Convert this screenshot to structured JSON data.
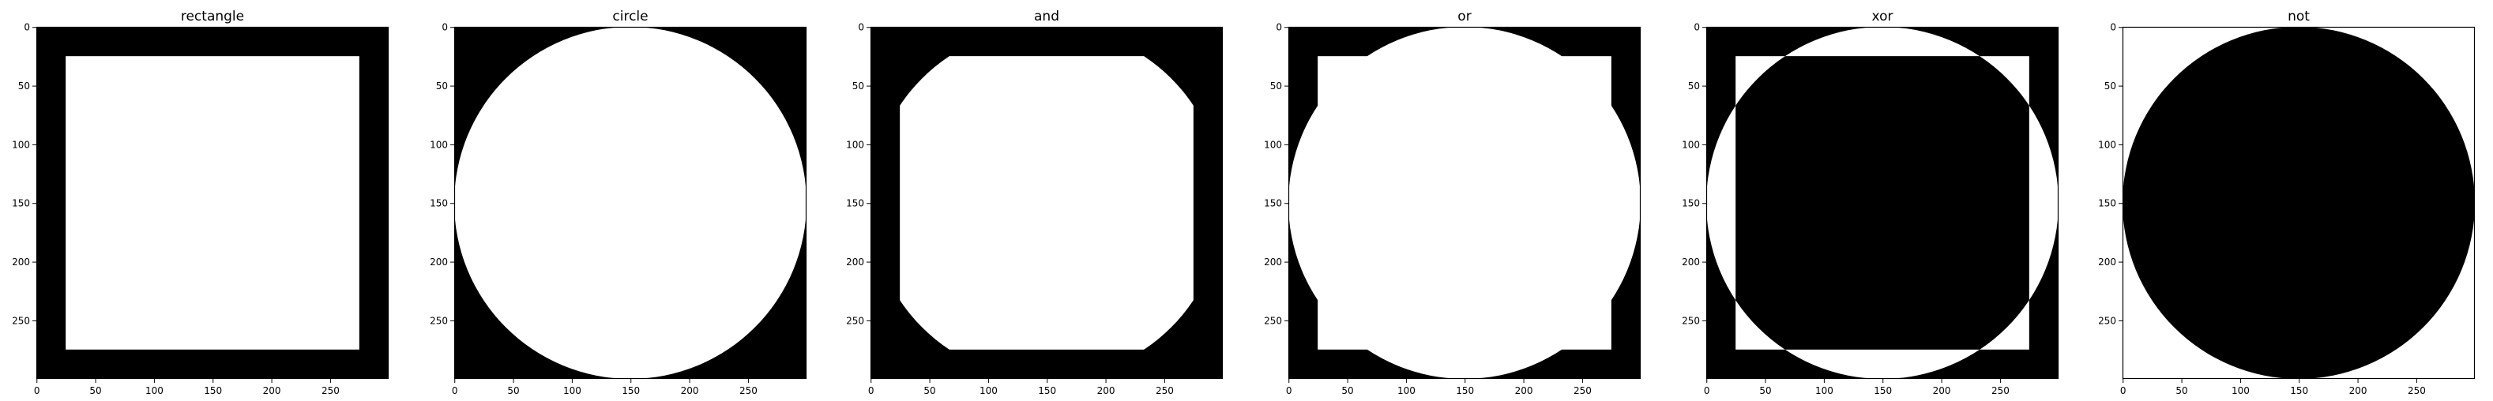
{
  "figure": {
    "panels": [
      {
        "title": "rectangle",
        "operation": "rectangle"
      },
      {
        "title": "circle",
        "operation": "circle"
      },
      {
        "title": "and",
        "operation": "and"
      },
      {
        "title": "or",
        "operation": "or"
      },
      {
        "title": "xor",
        "operation": "xor"
      },
      {
        "title": "not",
        "operation": "not"
      }
    ],
    "x_ticks": [
      "0",
      "50",
      "100",
      "150",
      "200",
      "250"
    ],
    "y_ticks": [
      "0",
      "50",
      "100",
      "150",
      "200",
      "250"
    ],
    "colors": {
      "foreground": "#ffffff",
      "background": "#000000",
      "frame": "#000000"
    }
  }
}
